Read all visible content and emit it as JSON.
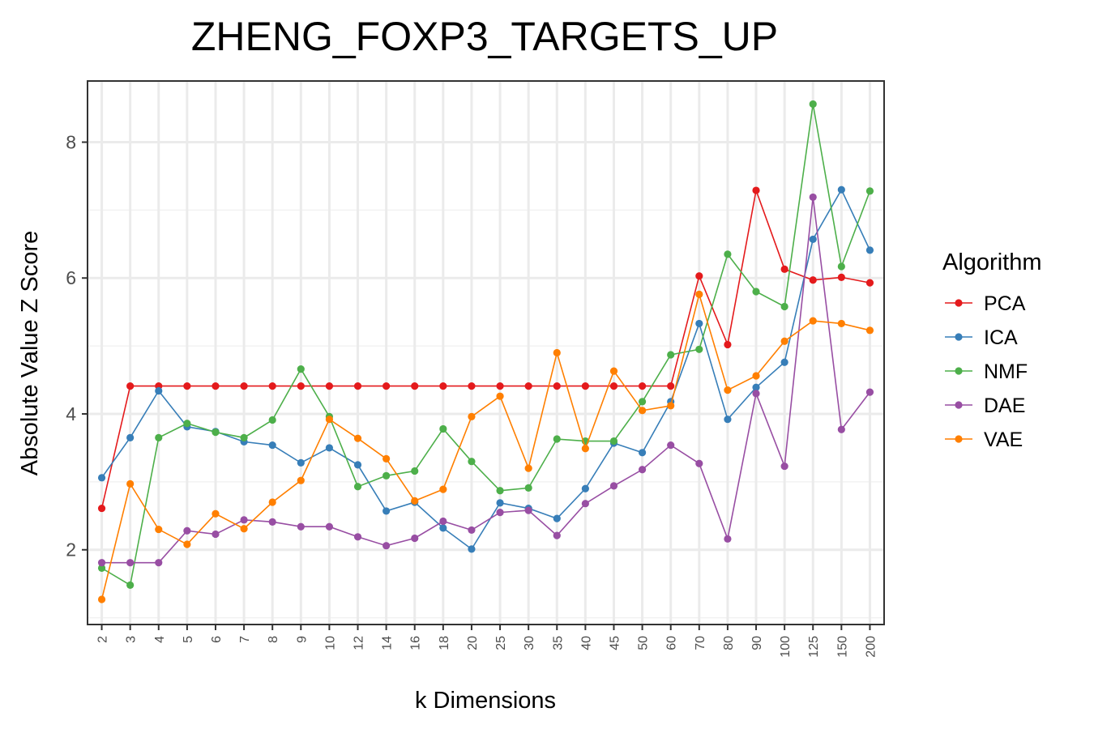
{
  "chart_data": {
    "type": "line",
    "title": "ZHENG_FOXP3_TARGETS_UP",
    "xlabel": "k Dimensions",
    "ylabel": "Absolute Value Z Score",
    "categories": [
      "2",
      "3",
      "4",
      "5",
      "6",
      "7",
      "8",
      "9",
      "10",
      "12",
      "14",
      "16",
      "18",
      "20",
      "25",
      "30",
      "35",
      "40",
      "45",
      "50",
      "60",
      "70",
      "80",
      "90",
      "100",
      "125",
      "150",
      "200"
    ],
    "ylim": [
      0.9,
      8.9
    ],
    "yticks": [
      2,
      4,
      6,
      8
    ],
    "grid": true,
    "legend": {
      "title": "Algorithm",
      "placement": "right",
      "entries": [
        "PCA",
        "ICA",
        "NMF",
        "DAE",
        "VAE"
      ]
    },
    "series": [
      {
        "name": "PCA",
        "color": "#e41a1c",
        "values": [
          2.61,
          4.41,
          4.41,
          4.41,
          4.41,
          4.41,
          4.41,
          4.41,
          4.41,
          4.41,
          4.41,
          4.41,
          4.41,
          4.41,
          4.41,
          4.41,
          4.41,
          4.41,
          4.41,
          4.41,
          4.41,
          6.03,
          5.02,
          7.29,
          6.13,
          5.97,
          6.01,
          5.93
        ]
      },
      {
        "name": "ICA",
        "color": "#377eb8",
        "values": [
          3.06,
          3.65,
          4.34,
          3.81,
          3.74,
          3.59,
          3.54,
          3.28,
          3.5,
          3.25,
          2.57,
          2.7,
          2.32,
          2.01,
          2.69,
          2.61,
          2.46,
          2.9,
          3.57,
          3.43,
          4.18,
          5.33,
          3.92,
          4.39,
          4.76,
          6.57,
          7.3,
          6.41
        ]
      },
      {
        "name": "NMF",
        "color": "#4daf4a",
        "values": [
          1.73,
          1.48,
          3.65,
          3.86,
          3.73,
          3.65,
          3.91,
          4.66,
          3.96,
          2.93,
          3.09,
          3.16,
          3.78,
          3.3,
          2.87,
          2.91,
          3.63,
          3.6,
          3.6,
          4.18,
          4.87,
          4.95,
          6.35,
          5.8,
          5.58,
          8.56,
          6.17,
          7.28
        ]
      },
      {
        "name": "DAE",
        "color": "#984ea3",
        "values": [
          1.81,
          1.81,
          1.81,
          2.28,
          2.23,
          2.44,
          2.41,
          2.34,
          2.34,
          2.19,
          2.06,
          2.17,
          2.42,
          2.29,
          2.55,
          2.58,
          2.21,
          2.68,
          2.94,
          3.18,
          3.54,
          3.27,
          2.16,
          4.3,
          3.23,
          7.19,
          3.77,
          4.32
        ]
      },
      {
        "name": "VAE",
        "color": "#ff7f00",
        "values": [
          1.27,
          2.97,
          2.3,
          2.08,
          2.53,
          2.31,
          2.7,
          3.02,
          3.92,
          3.64,
          3.34,
          2.72,
          2.89,
          3.96,
          4.26,
          3.2,
          4.9,
          3.49,
          4.63,
          4.05,
          4.12,
          5.76,
          4.35,
          4.56,
          5.07,
          5.37,
          5.33,
          5.23
        ]
      }
    ]
  }
}
